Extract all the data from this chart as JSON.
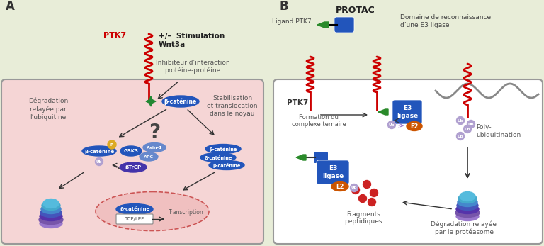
{
  "bg_color": "#e8edd8",
  "panel_a_bg": "#f5d5d5",
  "cell_border": "#888888",
  "label_A": "A",
  "label_B": "B",
  "ptk7_color": "#cc0000",
  "blue_color": "#2255bb",
  "blue_dark": "#1a3f8f",
  "orange_color": "#cc5500",
  "green_color": "#2a8a2a",
  "dark_color": "#333333",
  "protac_label": "PROTAC",
  "ligand_ptk7": "Ligand PTK7",
  "domaine_label": "Domaine de reconnaissance\nd’une E3 ligase",
  "ptk7_label": "PTK7",
  "stimulation_label": "+/–  Stimulation\nWnt3a",
  "inhibiteur_label": "Inhibiteur d’interaction\nprotéine-protéine",
  "degradation_a_label": "Dégradation\nrelayée par\nl’ubiquitine",
  "stabilisation_label": "Stabilisation\net translocation\ndans le noyau",
  "question_mark": "?",
  "formation_label": "Formation du\ncomplexe ternaire",
  "poly_label": "Poly-\nubiquitination",
  "fragments_label": "Fragments\npeptidiques",
  "degradation_b_label": "Dégradation relayée\npar le protéasome",
  "transcription_label": "Transcription",
  "tcf_label": "TCF/LEF",
  "beta_cat": "β-caténine",
  "e3_ligase": "E3\nligase",
  "e2_label": "E2",
  "ub_label": "Ub"
}
